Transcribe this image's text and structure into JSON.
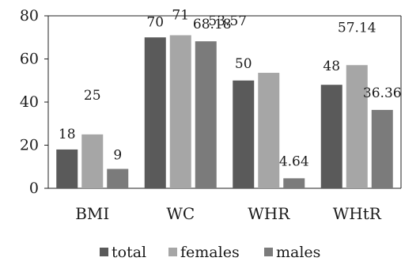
{
  "chart_data": {
    "type": "bar",
    "title": "",
    "xlabel": "",
    "ylabel": "",
    "categories": [
      "BMI",
      "WC",
      "WHR",
      "WHtR"
    ],
    "series": [
      {
        "name": "total",
        "values": [
          18,
          70,
          50,
          48
        ],
        "labels": [
          "18",
          "70",
          "50",
          "48"
        ],
        "color": "#5a5a5a"
      },
      {
        "name": "females",
        "values": [
          25,
          71,
          53.57,
          57.14
        ],
        "labels": [
          "25",
          "71",
          "53.57",
          "57.14"
        ],
        "color": "#a6a6a6"
      },
      {
        "name": "males",
        "values": [
          9,
          68.18,
          4.64,
          36.36
        ],
        "labels": [
          "9",
          "68.18",
          "4.64",
          "36.36"
        ],
        "color": "#7b7b7b"
      }
    ],
    "ylim": [
      0,
      80
    ],
    "yticks": [
      "0",
      "20",
      "40",
      "60",
      "80"
    ],
    "grid": false,
    "legend": "bottom"
  }
}
